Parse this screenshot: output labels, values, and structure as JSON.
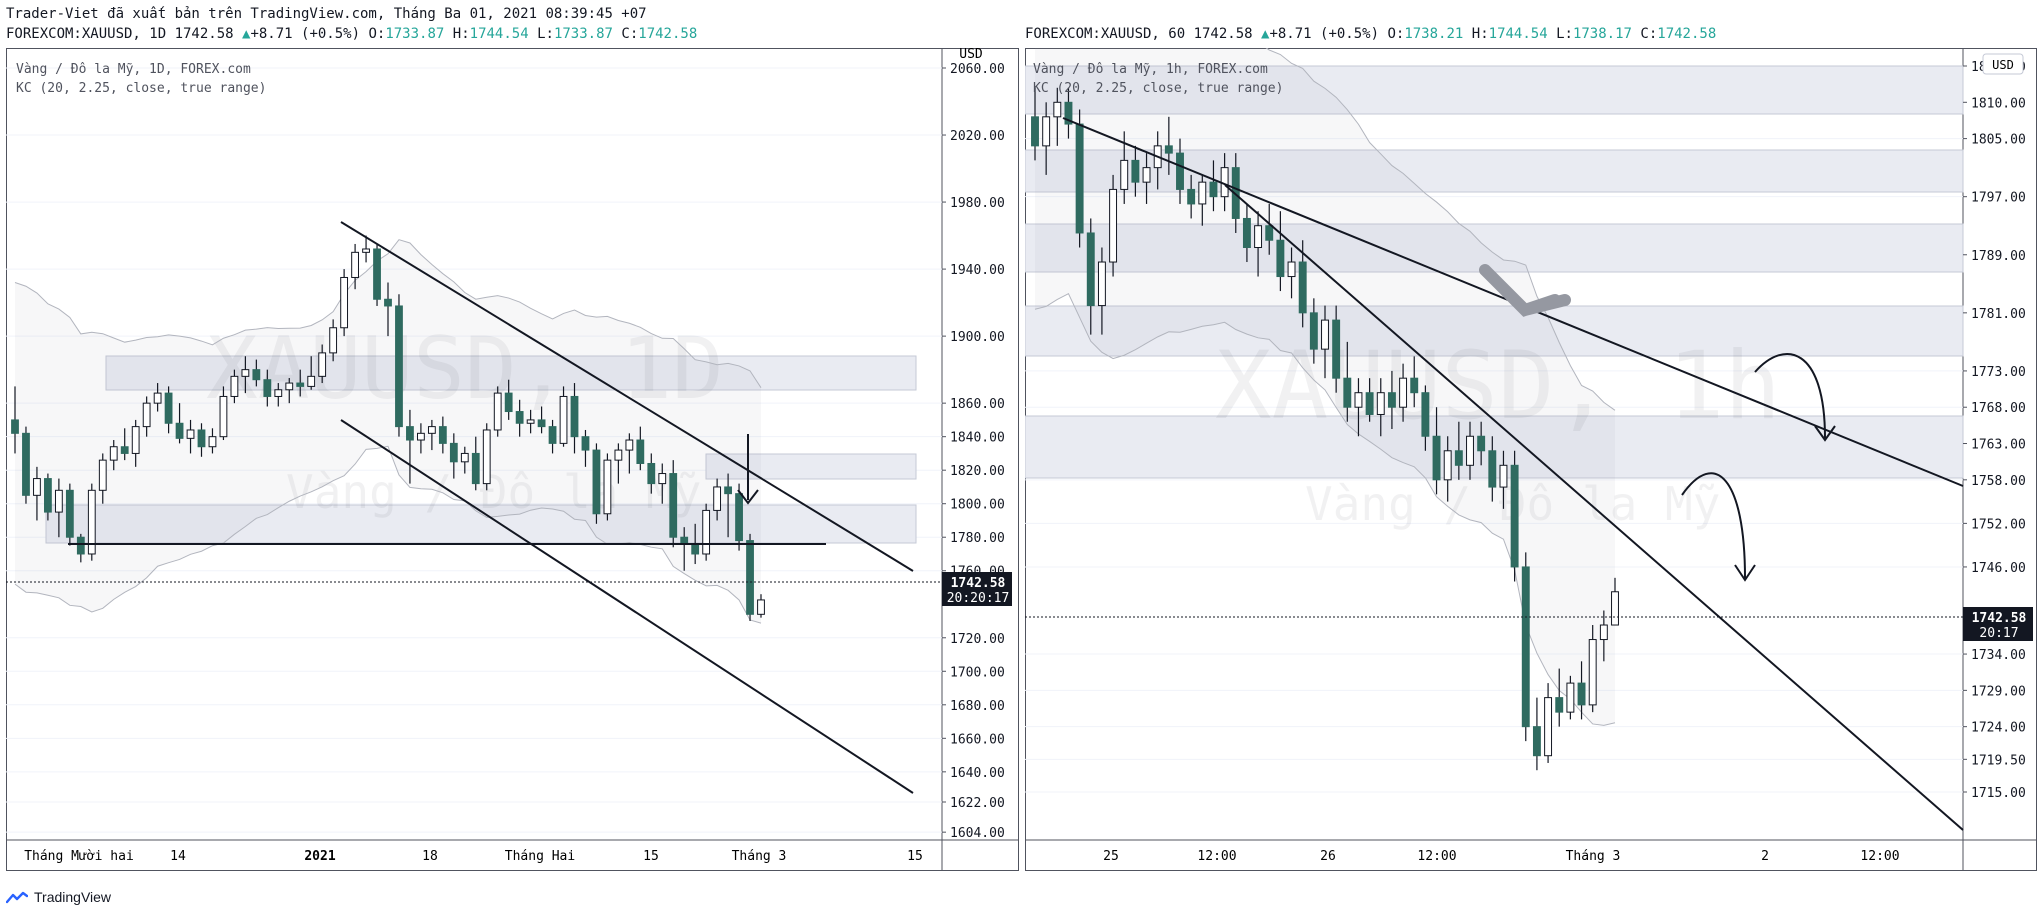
{
  "header": {
    "credit": "Trader-Viet đã xuất bản trên TradingView.com, Tháng Ba 01, 2021 08:39:45 +07"
  },
  "footer": {
    "brand": "TradingView"
  },
  "chart_data": [
    {
      "type": "candlestick",
      "ohlc_bar": {
        "symbol": "FOREXCOM:XAUUSD, 1D 1742.58",
        "change": "+8.71 (+0.5%)",
        "o_label": "O:",
        "o": "1733.87",
        "h_label": "H:",
        "h": "1744.54",
        "l_label": "L:",
        "l": "1733.87",
        "c_label": "C:",
        "c": "1742.58"
      },
      "legend": [
        "Vàng / Đô la Mỹ, 1D, FOREX.com",
        "KC (20, 2.25, close, true range)"
      ],
      "watermark": {
        "symbol": "XAUUSD, 1D",
        "name": "Vàng / Đô la Mỹ"
      },
      "currency": "USD",
      "y_ticks": [
        2060,
        2020,
        1980,
        1940,
        1900,
        1860,
        1840,
        1820,
        1800,
        1780,
        1760,
        1720,
        1700,
        1680,
        1660,
        1640,
        1622,
        1604
      ],
      "y_tick_labels": [
        "2060.00",
        "2020.00",
        "1980.00",
        "1940.00",
        "1900.00",
        "1860.00",
        "1840.00",
        "1820.00",
        "1800.00",
        "1780.00",
        "1760.00",
        "1720.00",
        "1700.00",
        "1680.00",
        "1660.00",
        "1640.00",
        "1622.00",
        "1604.00"
      ],
      "x_labels": [
        "Tháng Mười hai",
        "14",
        "2021",
        "18",
        "Tháng Hai",
        "15",
        "Tháng 3",
        "15"
      ],
      "last_price": "1742.58",
      "countdown": "20:20:17",
      "candles": [
        [
          1850,
          1870,
          1830,
          1842
        ],
        [
          1842,
          1846,
          1800,
          1805
        ],
        [
          1805,
          1822,
          1790,
          1815
        ],
        [
          1815,
          1818,
          1790,
          1795
        ],
        [
          1795,
          1815,
          1780,
          1808
        ],
        [
          1808,
          1812,
          1775,
          1780
        ],
        [
          1780,
          1782,
          1765,
          1770
        ],
        [
          1770,
          1812,
          1766,
          1808
        ],
        [
          1808,
          1830,
          1800,
          1826
        ],
        [
          1826,
          1838,
          1820,
          1834
        ],
        [
          1834,
          1845,
          1826,
          1830
        ],
        [
          1830,
          1850,
          1822,
          1846
        ],
        [
          1846,
          1864,
          1840,
          1860
        ],
        [
          1860,
          1872,
          1855,
          1866
        ],
        [
          1866,
          1870,
          1842,
          1848
        ],
        [
          1848,
          1860,
          1836,
          1839
        ],
        [
          1839,
          1850,
          1830,
          1844
        ],
        [
          1844,
          1848,
          1828,
          1834
        ],
        [
          1834,
          1845,
          1830,
          1840
        ],
        [
          1840,
          1870,
          1838,
          1864
        ],
        [
          1864,
          1880,
          1860,
          1876
        ],
        [
          1876,
          1888,
          1866,
          1880
        ],
        [
          1880,
          1886,
          1870,
          1874
        ],
        [
          1874,
          1880,
          1858,
          1864
        ],
        [
          1864,
          1872,
          1858,
          1868
        ],
        [
          1868,
          1875,
          1860,
          1872
        ],
        [
          1872,
          1880,
          1864,
          1870
        ],
        [
          1870,
          1888,
          1868,
          1876
        ],
        [
          1876,
          1895,
          1872,
          1890
        ],
        [
          1890,
          1910,
          1885,
          1905
        ],
        [
          1905,
          1940,
          1900,
          1935
        ],
        [
          1935,
          1955,
          1928,
          1950
        ],
        [
          1950,
          1960,
          1944,
          1952
        ],
        [
          1952,
          1955,
          1918,
          1922
        ],
        [
          1922,
          1932,
          1900,
          1918
        ],
        [
          1918,
          1925,
          1840,
          1846
        ],
        [
          1846,
          1856,
          1812,
          1838
        ],
        [
          1838,
          1848,
          1830,
          1842
        ],
        [
          1842,
          1850,
          1832,
          1846
        ],
        [
          1846,
          1852,
          1830,
          1836
        ],
        [
          1836,
          1842,
          1815,
          1825
        ],
        [
          1825,
          1834,
          1818,
          1830
        ],
        [
          1830,
          1840,
          1808,
          1812
        ],
        [
          1812,
          1848,
          1808,
          1844
        ],
        [
          1844,
          1870,
          1840,
          1866
        ],
        [
          1866,
          1874,
          1850,
          1855
        ],
        [
          1855,
          1862,
          1840,
          1848
        ],
        [
          1848,
          1856,
          1842,
          1850
        ],
        [
          1850,
          1858,
          1842,
          1846
        ],
        [
          1846,
          1850,
          1830,
          1836
        ],
        [
          1836,
          1870,
          1834,
          1864
        ],
        [
          1864,
          1872,
          1830,
          1840
        ],
        [
          1840,
          1844,
          1822,
          1832
        ],
        [
          1832,
          1836,
          1788,
          1794
        ],
        [
          1794,
          1830,
          1790,
          1826
        ],
        [
          1826,
          1836,
          1812,
          1832
        ],
        [
          1832,
          1842,
          1818,
          1838
        ],
        [
          1838,
          1846,
          1820,
          1824
        ],
        [
          1824,
          1830,
          1806,
          1812
        ],
        [
          1812,
          1824,
          1800,
          1818
        ],
        [
          1818,
          1826,
          1774,
          1780
        ],
        [
          1780,
          1786,
          1760,
          1776
        ],
        [
          1776,
          1788,
          1764,
          1770
        ],
        [
          1770,
          1800,
          1766,
          1796
        ],
        [
          1796,
          1815,
          1790,
          1810
        ],
        [
          1810,
          1818,
          1780,
          1806
        ],
        [
          1806,
          1812,
          1772,
          1778
        ],
        [
          1778,
          1782,
          1730,
          1734
        ],
        [
          1734,
          1746,
          1732,
          1742.58
        ]
      ]
    },
    {
      "type": "candlestick",
      "ohlc_bar": {
        "symbol": "FOREXCOM:XAUUSD, 60 1742.58",
        "change": "+8.71 (+0.5%)",
        "o_label": "O:",
        "o": "1738.21",
        "h_label": "H:",
        "h": "1744.54",
        "l_label": "L:",
        "l": "1738.17",
        "c_label": "C:",
        "c": "1742.58"
      },
      "legend": [
        "Vàng / Đô la Mỹ, 1h, FOREX.com",
        "KC (20, 2.25, close, true range)"
      ],
      "watermark": {
        "symbol": "XAUUSD, 1h",
        "name": "Vàng / Đô la Mỹ"
      },
      "currency": "USD",
      "y_ticks": [
        1815,
        1810,
        1805,
        1797,
        1789,
        1781,
        1773,
        1768,
        1763,
        1758,
        1752,
        1746,
        1734,
        1729,
        1724,
        1719.5,
        1715
      ],
      "y_tick_labels": [
        "1815.00",
        "1810.00",
        "1805.00",
        "1797.00",
        "1789.00",
        "1781.00",
        "1773.00",
        "1768.00",
        "1763.00",
        "1758.00",
        "1752.00",
        "1746.00",
        "1734.00",
        "1729.00",
        "1724.00",
        "1719.50",
        "1715.00"
      ],
      "x_labels": [
        "25",
        "12:00",
        "26",
        "12:00",
        "Tháng 3",
        "2",
        "12:00"
      ],
      "last_price": "1742.58",
      "countdown": "20:17",
      "candles": [
        [
          1808,
          1812,
          1802,
          1804
        ],
        [
          1804,
          1810,
          1800,
          1808
        ],
        [
          1808,
          1812,
          1804,
          1810
        ],
        [
          1810,
          1812,
          1805,
          1807
        ],
        [
          1807,
          1809,
          1790,
          1792
        ],
        [
          1792,
          1794,
          1778,
          1782
        ],
        [
          1782,
          1790,
          1778,
          1788
        ],
        [
          1788,
          1800,
          1786,
          1798
        ],
        [
          1798,
          1806,
          1796,
          1802
        ],
        [
          1802,
          1804,
          1797,
          1799
        ],
        [
          1799,
          1803,
          1796,
          1801
        ],
        [
          1801,
          1806,
          1798,
          1804
        ],
        [
          1804,
          1808,
          1800,
          1803
        ],
        [
          1803,
          1805,
          1796,
          1798
        ],
        [
          1798,
          1800,
          1794,
          1796
        ],
        [
          1796,
          1800,
          1793,
          1799
        ],
        [
          1799,
          1802,
          1795,
          1797
        ],
        [
          1797,
          1803,
          1795,
          1801
        ],
        [
          1801,
          1803,
          1792,
          1794
        ],
        [
          1794,
          1796,
          1788,
          1790
        ],
        [
          1790,
          1795,
          1786,
          1793
        ],
        [
          1793,
          1796,
          1789,
          1791
        ],
        [
          1791,
          1795,
          1784,
          1786
        ],
        [
          1786,
          1790,
          1783,
          1788
        ],
        [
          1788,
          1791,
          1779,
          1781
        ],
        [
          1781,
          1783,
          1774,
          1776
        ],
        [
          1776,
          1782,
          1772,
          1780
        ],
        [
          1780,
          1782,
          1770,
          1772
        ],
        [
          1772,
          1777,
          1766,
          1768
        ],
        [
          1768,
          1772,
          1764,
          1770
        ],
        [
          1770,
          1772,
          1766,
          1767
        ],
        [
          1767,
          1772,
          1764,
          1770
        ],
        [
          1770,
          1773,
          1765,
          1768
        ],
        [
          1768,
          1774,
          1766,
          1772
        ],
        [
          1772,
          1775,
          1768,
          1770
        ],
        [
          1770,
          1771,
          1762,
          1764
        ],
        [
          1764,
          1768,
          1756,
          1758
        ],
        [
          1758,
          1764,
          1755,
          1762
        ],
        [
          1762,
          1766,
          1758,
          1760
        ],
        [
          1760,
          1766,
          1758,
          1764
        ],
        [
          1764,
          1766,
          1760,
          1762
        ],
        [
          1762,
          1764,
          1755,
          1757
        ],
        [
          1757,
          1762,
          1754,
          1760
        ],
        [
          1760,
          1762,
          1744,
          1746
        ],
        [
          1746,
          1748,
          1722,
          1724
        ],
        [
          1724,
          1728,
          1718,
          1720
        ],
        [
          1720,
          1730,
          1719,
          1728
        ],
        [
          1728,
          1732,
          1724,
          1726
        ],
        [
          1726,
          1731,
          1725,
          1730
        ],
        [
          1730,
          1733,
          1725,
          1727
        ],
        [
          1727,
          1738,
          1726,
          1736
        ],
        [
          1736,
          1740,
          1733,
          1738
        ],
        [
          1738,
          1744.5,
          1738,
          1742.58
        ]
      ]
    }
  ]
}
